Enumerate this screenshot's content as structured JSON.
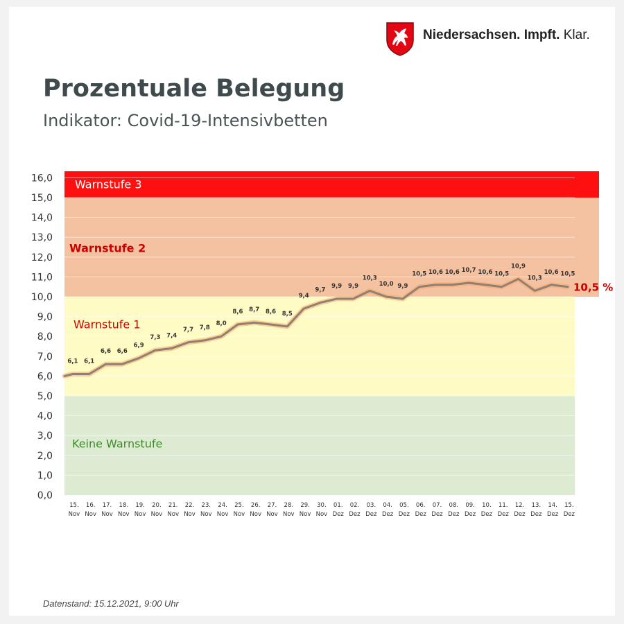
{
  "brand": {
    "name_bold": "Niedersachsen. Impft.",
    "name_light": "Klar."
  },
  "title": "Prozentuale Belegung",
  "subtitle": "Indikator: Covid-19-Intensivbetten",
  "footer": "Datenstand: 15.12.2021, 9:00 Uhr",
  "colors": {
    "warnstufe3": "#ff1010",
    "warnstufe2": "#f4c2a1",
    "warnstufe1": "#fffbc5",
    "keine": "#ddebd2",
    "line": "#8f8076",
    "line_glow": "#f5a86a",
    "label_red": "#cc0000",
    "label_green": "#3d8a2a"
  },
  "chart_data": {
    "type": "line",
    "ylim": [
      0,
      16
    ],
    "ytick_labels": [
      "0,0",
      "1,0",
      "2,0",
      "3,0",
      "4,0",
      "5,0",
      "6,0",
      "7,0",
      "8,0",
      "9,0",
      "10,0",
      "11,0",
      "12,0",
      "13,0",
      "14,0",
      "15,0",
      "16,0"
    ],
    "categories": [
      [
        "15.",
        "Nov"
      ],
      [
        "16.",
        "Nov"
      ],
      [
        "17.",
        "Nov"
      ],
      [
        "18.",
        "Nov"
      ],
      [
        "19.",
        "Nov"
      ],
      [
        "20.",
        "Nov"
      ],
      [
        "21.",
        "Nov"
      ],
      [
        "22.",
        "Nov"
      ],
      [
        "23.",
        "Nov"
      ],
      [
        "24.",
        "Nov"
      ],
      [
        "25.",
        "Nov"
      ],
      [
        "26.",
        "Nov"
      ],
      [
        "27.",
        "Nov"
      ],
      [
        "28.",
        "Nov"
      ],
      [
        "29.",
        "Nov"
      ],
      [
        "30.",
        "Nov"
      ],
      [
        "01.",
        "Dez"
      ],
      [
        "02.",
        "Dez"
      ],
      [
        "03.",
        "Dez"
      ],
      [
        "04.",
        "Dez"
      ],
      [
        "05.",
        "Dez"
      ],
      [
        "06.",
        "Dez"
      ],
      [
        "07.",
        "Dez"
      ],
      [
        "08.",
        "Dez"
      ],
      [
        "09.",
        "Dez"
      ],
      [
        "10.",
        "Dez"
      ],
      [
        "11.",
        "Dez"
      ],
      [
        "12.",
        "Dez"
      ],
      [
        "13.",
        "Dez"
      ],
      [
        "14.",
        "Dez"
      ],
      [
        "15.",
        "Dez"
      ]
    ],
    "values": [
      6.1,
      6.1,
      6.6,
      6.6,
      6.9,
      7.3,
      7.4,
      7.7,
      7.8,
      8.0,
      8.6,
      8.7,
      8.6,
      8.5,
      9.4,
      9.7,
      9.9,
      9.9,
      10.3,
      10.0,
      9.9,
      10.5,
      10.6,
      10.6,
      10.7,
      10.6,
      10.5,
      10.9,
      10.3,
      10.6,
      10.5
    ],
    "value_labels": [
      "6,1",
      "6,1",
      "6,6",
      "6,6",
      "6,9",
      "7,3",
      "7,4",
      "7,7",
      "7,8",
      "8,0",
      "8,6",
      "8,7",
      "8,6",
      "8,5",
      "9,4",
      "9,7",
      "9,9",
      "9,9",
      "10,3",
      "10,0",
      "9,9",
      "10,5",
      "10,6",
      "10,6",
      "10,7",
      "10,6",
      "10,5",
      "10,9",
      "10,3",
      "10,6",
      "10,5"
    ],
    "start_value": 6.0,
    "latest_label": "10,5 %",
    "bands": [
      {
        "name": "Keine Warnstufe",
        "from": 0,
        "to": 5,
        "color_key": "keine",
        "label_color_key": "label_green"
      },
      {
        "name": "Warnstufe 1",
        "from": 5,
        "to": 10,
        "color_key": "warnstufe1",
        "label_color_key": "label_red"
      },
      {
        "name": "Warnstufe 2",
        "from": 10,
        "to": 15,
        "color_key": "warnstufe2",
        "label_color_key": "label_red"
      },
      {
        "name": "Warnstufe 3",
        "from": 15,
        "to": 16.4,
        "color_key": "warnstufe3",
        "label_color_key": "white"
      }
    ]
  }
}
